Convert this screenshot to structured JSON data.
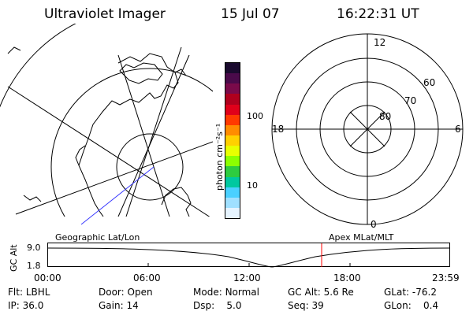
{
  "header": {
    "title": "Ultraviolet Imager",
    "date": "15 Jul 07",
    "time": "16:22:31 UT"
  },
  "colorbar": {
    "unit_label": "photon cm⁻²s⁻¹",
    "ticks": [
      "100",
      "10"
    ],
    "colors": [
      "#1a0a2e",
      "#4a0a4a",
      "#7a0a4a",
      "#b0001e",
      "#e0001a",
      "#ff3a00",
      "#ff8c00",
      "#ffd000",
      "#e8ff00",
      "#8cff00",
      "#2ecc40",
      "#00c8a0",
      "#4ad0ff",
      "#a0e0ff",
      "#e6f4ff"
    ]
  },
  "polar_plot": {
    "labels": {
      "top": "12",
      "bottom": "0",
      "left": "18",
      "right": "6"
    },
    "lat_labels": [
      "60",
      "70",
      "80"
    ]
  },
  "timeline": {
    "left_title": "Geographic Lat/Lon",
    "right_title": "Apex MLat/MLT",
    "axis_label": "GC Alt",
    "y_ticks": [
      "9.0",
      "1.8"
    ],
    "x_ticks": [
      "00:00",
      "06:00",
      "12:00",
      "18:00",
      "23:59"
    ],
    "marker_color": "#ff0000"
  },
  "status": {
    "row1": [
      {
        "key": "Flt:",
        "value": "LBHL"
      },
      {
        "key": "Door:",
        "value": "Open"
      },
      {
        "key": "Mode:",
        "value": "Normal"
      },
      {
        "key": "GC Alt:",
        "value": "5.6 Re"
      },
      {
        "key": "GLat:",
        "value": "-76.2"
      }
    ],
    "row2": [
      {
        "key": "IP:",
        "value": "36.0"
      },
      {
        "key": "Gain:",
        "value": "14"
      },
      {
        "key": "Dsp:",
        "value": "5.0"
      },
      {
        "key": "Seq:",
        "value": "39"
      },
      {
        "key": "GLon:",
        "value": "0.4"
      }
    ]
  }
}
